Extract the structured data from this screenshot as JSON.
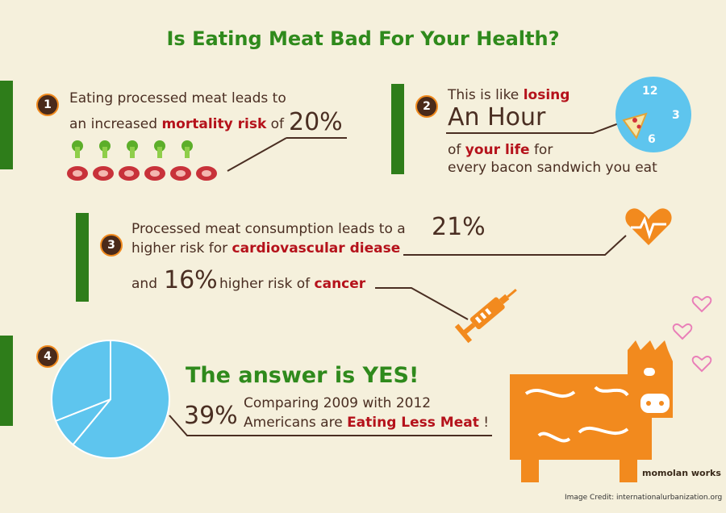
{
  "title": "Is Eating Meat Bad For Your Health?",
  "section1": {
    "number": "1",
    "line1": "Eating processed meat leads to",
    "line2_pre": "an increased ",
    "line2_red": "mortality risk",
    "line2_post": " of",
    "big_value": "20%"
  },
  "section2": {
    "number": "2",
    "line1_pre": "This is like ",
    "line1_red": "losing",
    "big_value": "An Hour",
    "line2_pre": "of ",
    "line2_red": "your life",
    "line2_post": " for",
    "line3": "every bacon sandwich you eat",
    "clock": {
      "twelve": "12",
      "three": "3",
      "six": "6"
    }
  },
  "section3": {
    "number": "3",
    "line1": "Processed meat consumption leads to a",
    "big_value1": "21%",
    "line2_pre": "higher risk for ",
    "line2_red": "cardiovascular diease",
    "line3_pre": "and",
    "big_value2": "16%",
    "line3_mid": "higher risk of ",
    "line3_red": "cancer"
  },
  "section4": {
    "number": "4",
    "answer": "The answer is YES!",
    "big_value": "39%",
    "line1": "Comparing 2009 with 2012",
    "line2_pre": "Americans are ",
    "line2_red": "Eating Less Meat",
    "line2_post": " !",
    "pie_fractions": [
      0.61,
      0.08,
      0.31
    ]
  },
  "signature": "momolan works",
  "credit": "Image Credit: internationalurbanization.org",
  "colors": {
    "background": "#f5f0dc",
    "title_green": "#2f8a1c",
    "accent_red": "#b5121b",
    "accent_orange": "#f28a1e",
    "pie_blue": "#5ec5ee",
    "bar_green": "#2e7d1a"
  }
}
